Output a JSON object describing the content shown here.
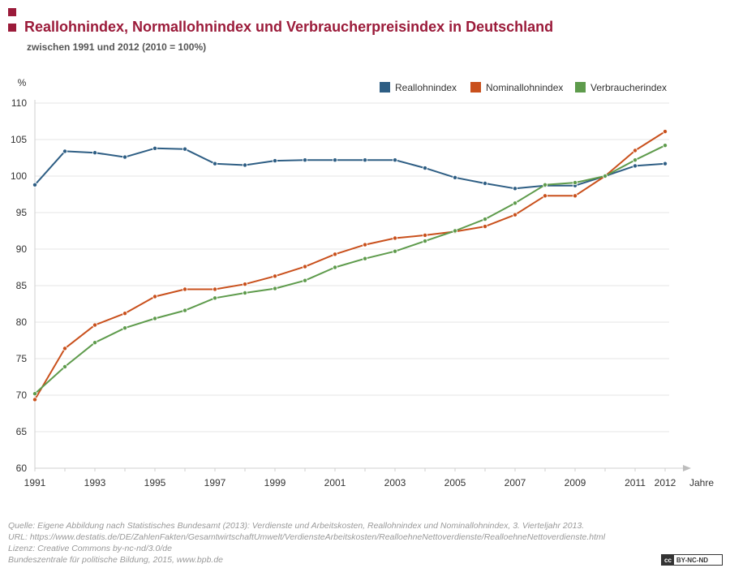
{
  "header": {
    "title": "Reallohnindex, Normallohnindex und Verbraucherpreisindex in Deutschland",
    "subtitle": "zwischen 1991 und 2012 (2010 = 100%)"
  },
  "chart_data": {
    "type": "line",
    "title": "Reallohnindex, Normallohnindex und Verbraucherpreisindex in Deutschland",
    "subtitle": "zwischen 1991 und 2012 (2010 = 100%)",
    "ylabel": "%",
    "xlabel": "Jahre",
    "ylim": [
      60,
      110
    ],
    "yticks": [
      60,
      65,
      70,
      75,
      80,
      85,
      90,
      95,
      100,
      105,
      110
    ],
    "xticks": [
      1991,
      1993,
      1995,
      1997,
      1999,
      2001,
      2003,
      2005,
      2007,
      2009,
      2011,
      2012
    ],
    "grid": "horizontal",
    "legend_position": "top-right",
    "x": [
      1991,
      1992,
      1993,
      1994,
      1995,
      1996,
      1997,
      1998,
      1999,
      2000,
      2001,
      2002,
      2003,
      2004,
      2005,
      2006,
      2007,
      2008,
      2009,
      2010,
      2011,
      2012
    ],
    "series": [
      {
        "name": "Reallohnindex",
        "color": "#2e5e84",
        "values": [
          98.8,
          103.4,
          103.2,
          102.6,
          103.8,
          103.7,
          101.7,
          101.5,
          102.1,
          102.2,
          102.2,
          102.2,
          102.2,
          101.1,
          99.8,
          99.0,
          98.3,
          98.7,
          98.7,
          100.0,
          101.4,
          101.7
        ]
      },
      {
        "name": "Nominallohnindex",
        "color": "#c9501c",
        "values": [
          69.4,
          76.4,
          79.6,
          81.2,
          83.5,
          84.5,
          84.5,
          85.2,
          86.3,
          87.6,
          89.3,
          90.6,
          91.5,
          91.9,
          92.4,
          93.1,
          94.7,
          97.3,
          97.3,
          100.0,
          103.5,
          106.1
        ]
      },
      {
        "name": "Verbraucherindex",
        "color": "#5e9b4c",
        "values": [
          70.2,
          73.9,
          77.2,
          79.2,
          80.5,
          81.6,
          83.3,
          84.0,
          84.6,
          85.7,
          87.5,
          88.7,
          89.7,
          91.1,
          92.5,
          94.1,
          96.3,
          98.8,
          99.1,
          100.0,
          102.2,
          104.2
        ]
      }
    ]
  },
  "footer": {
    "source_lines": [
      "Quelle: Eigene Abbildung nach Statistisches Bundesamt (2013): Verdienste und Arbeitskosten, Reallohnindex und Nominallohnindex, 3. Vierteljahr 2013.",
      "URL: https://www.destatis.de/DE/ZahlenFakten/GesamtwirtschaftUmwelt/VerdiensteArbeitskosten/RealloehneNettoverdienste/RealloehneNettoverdienste.html",
      "Lizenz: Creative Commons by-nc-nd/3.0/de",
      "Bundeszentrale für politische Bildung, 2015, www.bpb.de"
    ],
    "license_badge": {
      "cc": "cc",
      "terms": "BY-NC-ND"
    }
  }
}
